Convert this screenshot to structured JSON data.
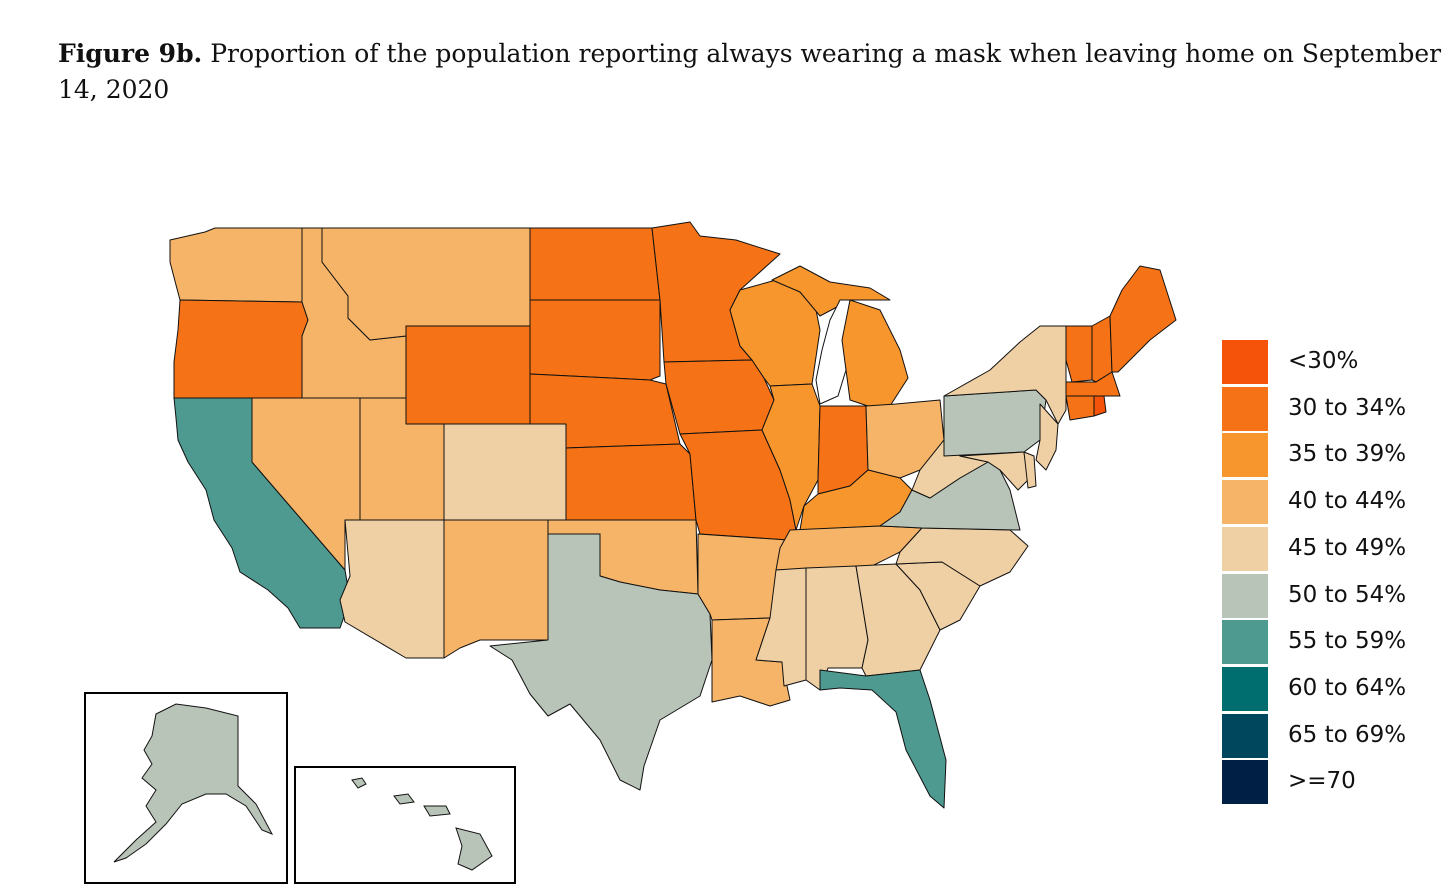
{
  "figure": {
    "label": "Figure 9b.",
    "text": "Proportion of the population reporting always wearing a mask when leaving home on September 14, 2020"
  },
  "legend": {
    "items": [
      {
        "label": "<30%",
        "color": "#f5530a"
      },
      {
        "label": "30 to 34%",
        "color": "#f57316"
      },
      {
        "label": "35 to 39%",
        "color": "#f8962e"
      },
      {
        "label": "40 to 44%",
        "color": "#f6b468"
      },
      {
        "label": "45 to 49%",
        "color": "#efcfa4"
      },
      {
        "label": "50 to 54%",
        "color": "#b8c4b8"
      },
      {
        "label": "55 to 59%",
        "color": "#4e9990"
      },
      {
        "label": "60 to 64%",
        "color": "#006e6e"
      },
      {
        "label": "65 to 69%",
        "color": "#00475d"
      },
      {
        "label": ">=70",
        "color": "#001f45"
      }
    ]
  },
  "states": [
    {
      "abbr": "WA",
      "bin": "40 to 44%"
    },
    {
      "abbr": "OR",
      "bin": "30 to 34%"
    },
    {
      "abbr": "CA",
      "bin": "55 to 59%"
    },
    {
      "abbr": "ID",
      "bin": "40 to 44%"
    },
    {
      "abbr": "NV",
      "bin": "40 to 44%"
    },
    {
      "abbr": "MT",
      "bin": "40 to 44%"
    },
    {
      "abbr": "WY",
      "bin": "30 to 34%"
    },
    {
      "abbr": "UT",
      "bin": "40 to 44%"
    },
    {
      "abbr": "AZ",
      "bin": "45 to 49%"
    },
    {
      "abbr": "CO",
      "bin": "45 to 49%"
    },
    {
      "abbr": "NM",
      "bin": "40 to 44%"
    },
    {
      "abbr": "ND",
      "bin": "30 to 34%"
    },
    {
      "abbr": "SD",
      "bin": "30 to 34%"
    },
    {
      "abbr": "NE",
      "bin": "30 to 34%"
    },
    {
      "abbr": "KS",
      "bin": "30 to 34%"
    },
    {
      "abbr": "OK",
      "bin": "40 to 44%"
    },
    {
      "abbr": "TX",
      "bin": "50 to 54%"
    },
    {
      "abbr": "MN",
      "bin": "30 to 34%"
    },
    {
      "abbr": "IA",
      "bin": "30 to 34%"
    },
    {
      "abbr": "MO",
      "bin": "30 to 34%"
    },
    {
      "abbr": "AR",
      "bin": "40 to 44%"
    },
    {
      "abbr": "LA",
      "bin": "40 to 44%"
    },
    {
      "abbr": "WI",
      "bin": "35 to 39%"
    },
    {
      "abbr": "IL",
      "bin": "35 to 39%"
    },
    {
      "abbr": "MI",
      "bin": "35 to 39%"
    },
    {
      "abbr": "IN",
      "bin": "30 to 34%"
    },
    {
      "abbr": "OH",
      "bin": "40 to 44%"
    },
    {
      "abbr": "KY",
      "bin": "35 to 39%"
    },
    {
      "abbr": "TN",
      "bin": "40 to 44%"
    },
    {
      "abbr": "MS",
      "bin": "45 to 49%"
    },
    {
      "abbr": "AL",
      "bin": "45 to 49%"
    },
    {
      "abbr": "GA",
      "bin": "45 to 49%"
    },
    {
      "abbr": "FL",
      "bin": "55 to 59%"
    },
    {
      "abbr": "SC",
      "bin": "45 to 49%"
    },
    {
      "abbr": "NC",
      "bin": "45 to 49%"
    },
    {
      "abbr": "VA",
      "bin": "50 to 54%"
    },
    {
      "abbr": "WV",
      "bin": "45 to 49%"
    },
    {
      "abbr": "PA",
      "bin": "50 to 54%"
    },
    {
      "abbr": "NY",
      "bin": "45 to 49%"
    },
    {
      "abbr": "NJ",
      "bin": "45 to 49%"
    },
    {
      "abbr": "MD",
      "bin": "45 to 49%"
    },
    {
      "abbr": "DE",
      "bin": "45 to 49%"
    },
    {
      "abbr": "VT",
      "bin": "30 to 34%"
    },
    {
      "abbr": "NH",
      "bin": "30 to 34%"
    },
    {
      "abbr": "ME",
      "bin": "30 to 34%"
    },
    {
      "abbr": "MA",
      "bin": "30 to 34%"
    },
    {
      "abbr": "CT",
      "bin": "30 to 34%"
    },
    {
      "abbr": "RI",
      "bin": "<30%"
    },
    {
      "abbr": "AK",
      "bin": "50 to 54%"
    },
    {
      "abbr": "HI",
      "bin": "50 to 54%"
    }
  ]
}
